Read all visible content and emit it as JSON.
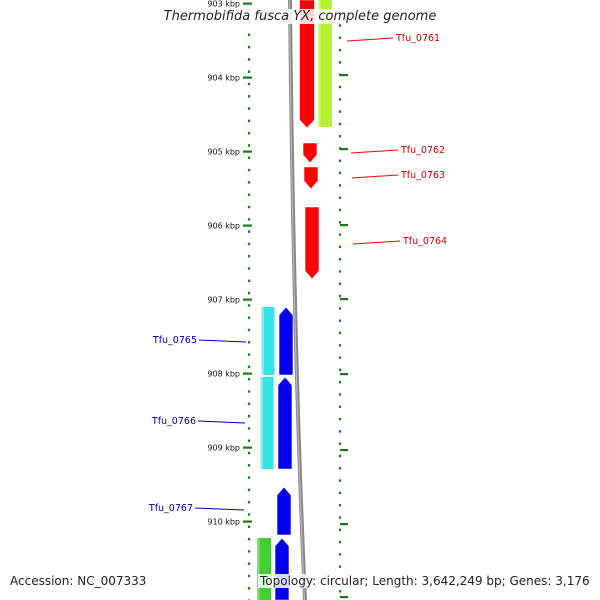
{
  "title": "Thermobifida fusca YX, complete genome",
  "accession": "Accession: NC_007333",
  "topology": "Topology: circular; Length: 3,642,249 bp; Genes: 3,176",
  "kbp_labels": [
    {
      "label": "903 kbp",
      "pos_kbp": 903
    },
    {
      "label": "904 kbp",
      "pos_kbp": 904
    },
    {
      "label": "905 kbp",
      "pos_kbp": 905
    },
    {
      "label": "906 kbp",
      "pos_kbp": 906
    },
    {
      "label": "907 kbp",
      "pos_kbp": 907
    },
    {
      "label": "908 kbp",
      "pos_kbp": 908
    },
    {
      "label": "909 kbp",
      "pos_kbp": 909
    },
    {
      "label": "910 kbp",
      "pos_kbp": 910
    }
  ],
  "genes_forward": [
    {
      "label": "Tfu_0761",
      "color": "#ff0000"
    },
    {
      "label": "Tfu_0762",
      "color": "#ff0000"
    },
    {
      "label": "Tfu_0763",
      "color": "#ff0000"
    },
    {
      "label": "Tfu_0764",
      "color": "#ff0000"
    }
  ],
  "genes_reverse": [
    {
      "label": "Tfu_0765",
      "color": "#0000cc"
    },
    {
      "label": "Tfu_0766",
      "color": "#0000cc"
    },
    {
      "label": "Tfu_0767",
      "color": "#0000cc"
    }
  ],
  "colors": {
    "forward_cds": "#ff0000",
    "reverse_cds": "#0000ee",
    "forward_feature": "#b8f030",
    "reverse_feature": "#33e5e5",
    "other_feature": "#44cc33",
    "backbone": "#888888",
    "ticks": "#1a7a1a",
    "forward_label": "#cc0000",
    "reverse_label": "#000099"
  }
}
